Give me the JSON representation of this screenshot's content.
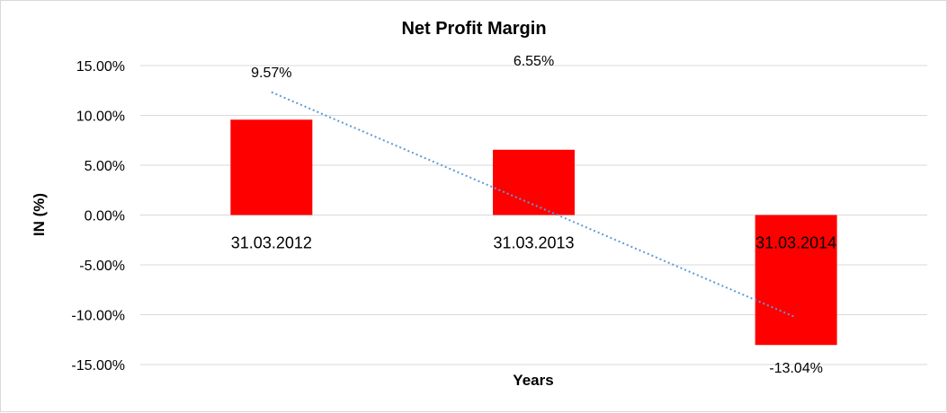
{
  "chart_data": {
    "type": "bar",
    "title": "Net Profit Margin",
    "xlabel": "Years",
    "ylabel": "IN (%)",
    "categories": [
      "31.03.2012",
      "31.03.2013",
      "31.03.2014"
    ],
    "series": [
      {
        "values": [
          9.57,
          6.55,
          -13.04
        ],
        "data_labels": [
          "9.57%",
          "6.55%",
          "-13.04%"
        ],
        "color": "#ff0000"
      }
    ],
    "trendline": {
      "type": "linear",
      "style": "dotted",
      "color": "#5b9bd5"
    },
    "ylim": [
      -15,
      15
    ],
    "yticks": [
      15,
      10,
      5,
      0,
      -5,
      -10,
      -15
    ],
    "ytick_labels": [
      "15.00%",
      "10.00%",
      "5.00%",
      "0.00%",
      "-5.00%",
      "-10.00%",
      "-15.00%"
    ],
    "grid": true,
    "legend": "none"
  }
}
